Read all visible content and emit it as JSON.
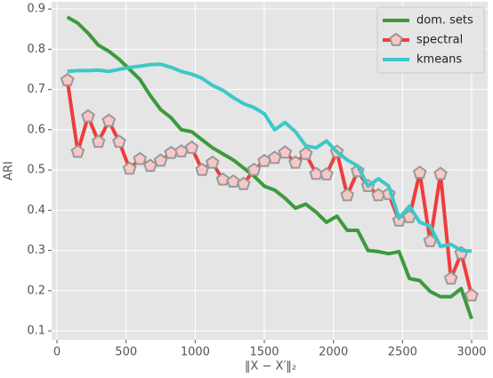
{
  "chart_data": {
    "type": "line",
    "xlabel": "‖X − X′‖₂",
    "ylabel": "ARI",
    "x": [
      75,
      150,
      225,
      300,
      375,
      450,
      525,
      600,
      675,
      750,
      825,
      900,
      975,
      1050,
      1125,
      1200,
      1275,
      1350,
      1425,
      1500,
      1575,
      1650,
      1725,
      1800,
      1875,
      1950,
      2025,
      2100,
      2175,
      2250,
      2325,
      2400,
      2475,
      2550,
      2625,
      2700,
      2775,
      2850,
      2925,
      3000
    ],
    "series": [
      {
        "name": "dom. sets",
        "color": "#3d9a3d",
        "values": [
          0.88,
          0.865,
          0.84,
          0.81,
          0.795,
          0.775,
          0.75,
          0.725,
          0.685,
          0.65,
          0.63,
          0.6,
          0.595,
          0.575,
          0.555,
          0.54,
          0.525,
          0.505,
          0.485,
          0.46,
          0.45,
          0.43,
          0.405,
          0.415,
          0.395,
          0.37,
          0.385,
          0.35,
          0.35,
          0.3,
          0.297,
          0.292,
          0.297,
          0.23,
          0.225,
          0.198,
          0.185,
          0.185,
          0.205,
          0.13
        ]
      },
      {
        "name": "spectral",
        "color": "#f03c3c",
        "marker": "pentagon",
        "values": [
          0.723,
          0.545,
          0.633,
          0.57,
          0.622,
          0.57,
          0.503,
          0.527,
          0.51,
          0.523,
          0.542,
          0.546,
          0.555,
          0.5,
          0.518,
          0.476,
          0.471,
          0.465,
          0.5,
          0.522,
          0.53,
          0.543,
          0.518,
          0.54,
          0.49,
          0.489,
          0.545,
          0.437,
          0.497,
          0.46,
          0.437,
          0.44,
          0.374,
          0.383,
          0.493,
          0.323,
          0.49,
          0.23,
          0.293,
          0.188
        ]
      },
      {
        "name": "kmeans",
        "color": "#3cc8c8",
        "values": [
          0.745,
          0.747,
          0.747,
          0.748,
          0.745,
          0.75,
          0.755,
          0.758,
          0.762,
          0.763,
          0.755,
          0.745,
          0.738,
          0.728,
          0.71,
          0.698,
          0.68,
          0.665,
          0.655,
          0.64,
          0.6,
          0.618,
          0.595,
          0.56,
          0.555,
          0.572,
          0.545,
          0.525,
          0.51,
          0.46,
          0.478,
          0.46,
          0.38,
          0.41,
          0.37,
          0.36,
          0.31,
          0.315,
          0.3,
          0.298
        ]
      }
    ],
    "xlim": [
      -39,
      3116
    ],
    "ylim": [
      0.078,
      0.918
    ],
    "xticks": [
      0,
      500,
      1000,
      1500,
      2000,
      2500,
      3000
    ],
    "yticks": [
      0.1,
      0.2,
      0.3,
      0.4,
      0.5,
      0.6,
      0.7,
      0.8,
      0.9
    ],
    "grid": true,
    "legend": "upper right"
  }
}
